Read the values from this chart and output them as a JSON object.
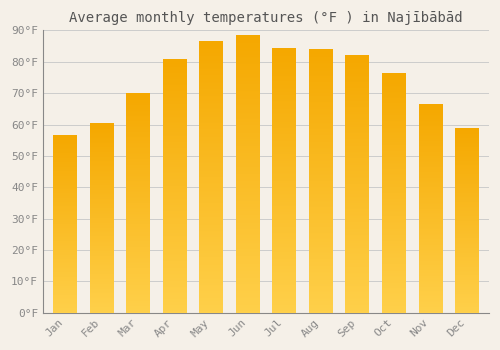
{
  "title": "Average monthly temperatures (°F ) in Najībābād",
  "months": [
    "Jan",
    "Feb",
    "Mar",
    "Apr",
    "May",
    "Jun",
    "Jul",
    "Aug",
    "Sep",
    "Oct",
    "Nov",
    "Dec"
  ],
  "values": [
    56.5,
    60.5,
    70.0,
    81.0,
    86.5,
    88.5,
    84.5,
    84.0,
    82.0,
    76.5,
    66.5,
    59.0
  ],
  "bar_color_bottom": "#FFD04A",
  "bar_color_top": "#F5A800",
  "background_color": "#F5F0E8",
  "plot_bg_color": "#F5F0E8",
  "grid_color": "#CCCCCC",
  "text_color": "#888888",
  "title_color": "#555555",
  "ylim": [
    0,
    90
  ],
  "yticks": [
    0,
    10,
    20,
    30,
    40,
    50,
    60,
    70,
    80,
    90
  ],
  "title_fontsize": 10,
  "tick_fontsize": 8,
  "bar_width": 0.65
}
